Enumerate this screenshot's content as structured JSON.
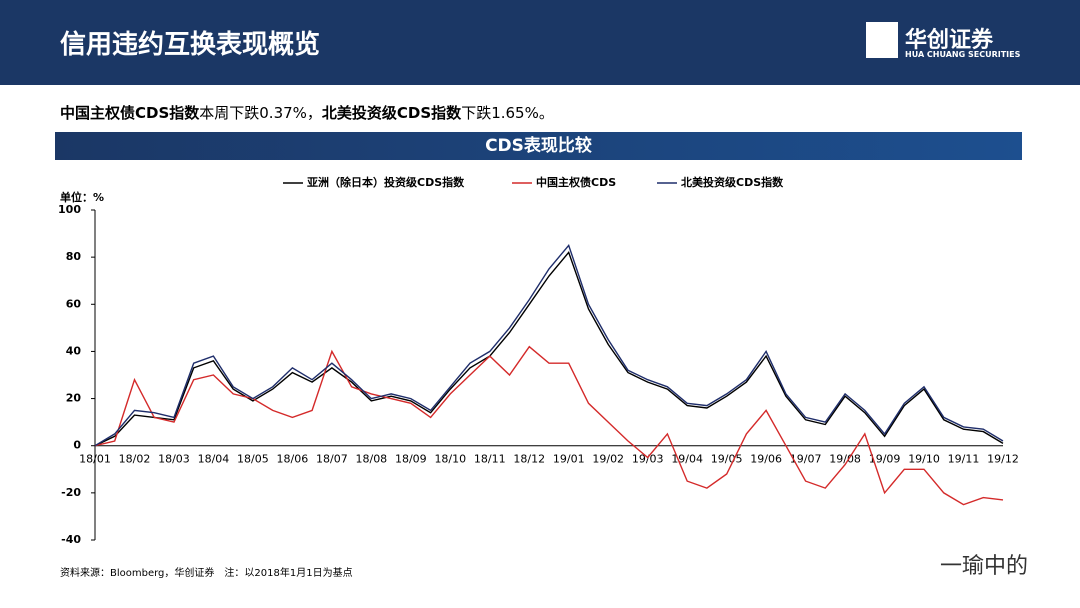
{
  "header": {
    "title": "信用违约互换表现概览",
    "logo": "华创证券",
    "logo_sub": "HUA CHUANG SECURITIES"
  },
  "summary": [
    {
      "text": "中国主权债CDS指数",
      "bold": true
    },
    {
      "text": "本周下跌0.37%，",
      "bold": false
    },
    {
      "text": "北美投资级CDS指数",
      "bold": true
    },
    {
      "text": "下跌1.65%。",
      "bold": false
    }
  ],
  "chart_data": {
    "type": "line",
    "title": "CDS表现比较",
    "y_label": "单位：%",
    "categories": [
      "18/01",
      null,
      "18/02",
      null,
      "18/03",
      null,
      "18/04",
      null,
      "18/05",
      null,
      "18/06",
      null,
      "18/07",
      null,
      "18/08",
      null,
      "18/09",
      null,
      "18/10",
      null,
      "18/11",
      null,
      "18/12",
      null,
      "19/01",
      null,
      "19/02",
      null,
      "19/03",
      null,
      "19/04",
      null,
      "19/05",
      null,
      "19/06",
      null,
      "19/07",
      null,
      "19/08",
      null,
      "19/09",
      null,
      "19/10",
      null,
      "19/11",
      null,
      "19/12"
    ],
    "series": [
      {
        "name": "亚洲（除日本）投资级CDS指数",
        "color": "#000000",
        "values": [
          0,
          4,
          13,
          12,
          11,
          33,
          36,
          24,
          19,
          24,
          31,
          27,
          33,
          27,
          19,
          21,
          19,
          14,
          24,
          33,
          38,
          48,
          60,
          72,
          82,
          58,
          43,
          31,
          27,
          24,
          17,
          16,
          21,
          27,
          38,
          21,
          11,
          9,
          21,
          14,
          4,
          17,
          24,
          11,
          7,
          6,
          1
        ]
      },
      {
        "name": "中国主权债CDS",
        "color": "#d42a2a",
        "values": [
          0,
          2,
          28,
          12,
          10,
          28,
          30,
          22,
          20,
          15,
          12,
          15,
          40,
          25,
          22,
          20,
          18,
          12,
          22,
          30,
          38,
          30,
          42,
          35,
          35,
          18,
          10,
          2,
          -5,
          5,
          -15,
          -18,
          -12,
          5,
          15,
          0,
          -15,
          -18,
          -8,
          5,
          -20,
          -10,
          -10,
          -20,
          -25,
          -22,
          -23
        ]
      },
      {
        "name": "北美投资级CDS指数",
        "color": "#1f2e6b",
        "values": [
          0,
          5,
          15,
          14,
          12,
          35,
          38,
          25,
          20,
          25,
          33,
          28,
          35,
          28,
          20,
          22,
          20,
          15,
          25,
          35,
          40,
          50,
          62,
          75,
          85,
          60,
          45,
          32,
          28,
          25,
          18,
          17,
          22,
          28,
          40,
          22,
          12,
          10,
          22,
          15,
          5,
          18,
          25,
          12,
          8,
          7,
          2
        ]
      }
    ],
    "ylim": [
      -40,
      100
    ],
    "yticks": [
      -40,
      -20,
      0,
      20,
      40,
      60,
      80,
      100
    ],
    "legend": "top",
    "grid": false,
    "source": "资料来源：Bloomberg，华创证券　注：以2018年1月1日为基点"
  },
  "watermark": "一瑜中的"
}
